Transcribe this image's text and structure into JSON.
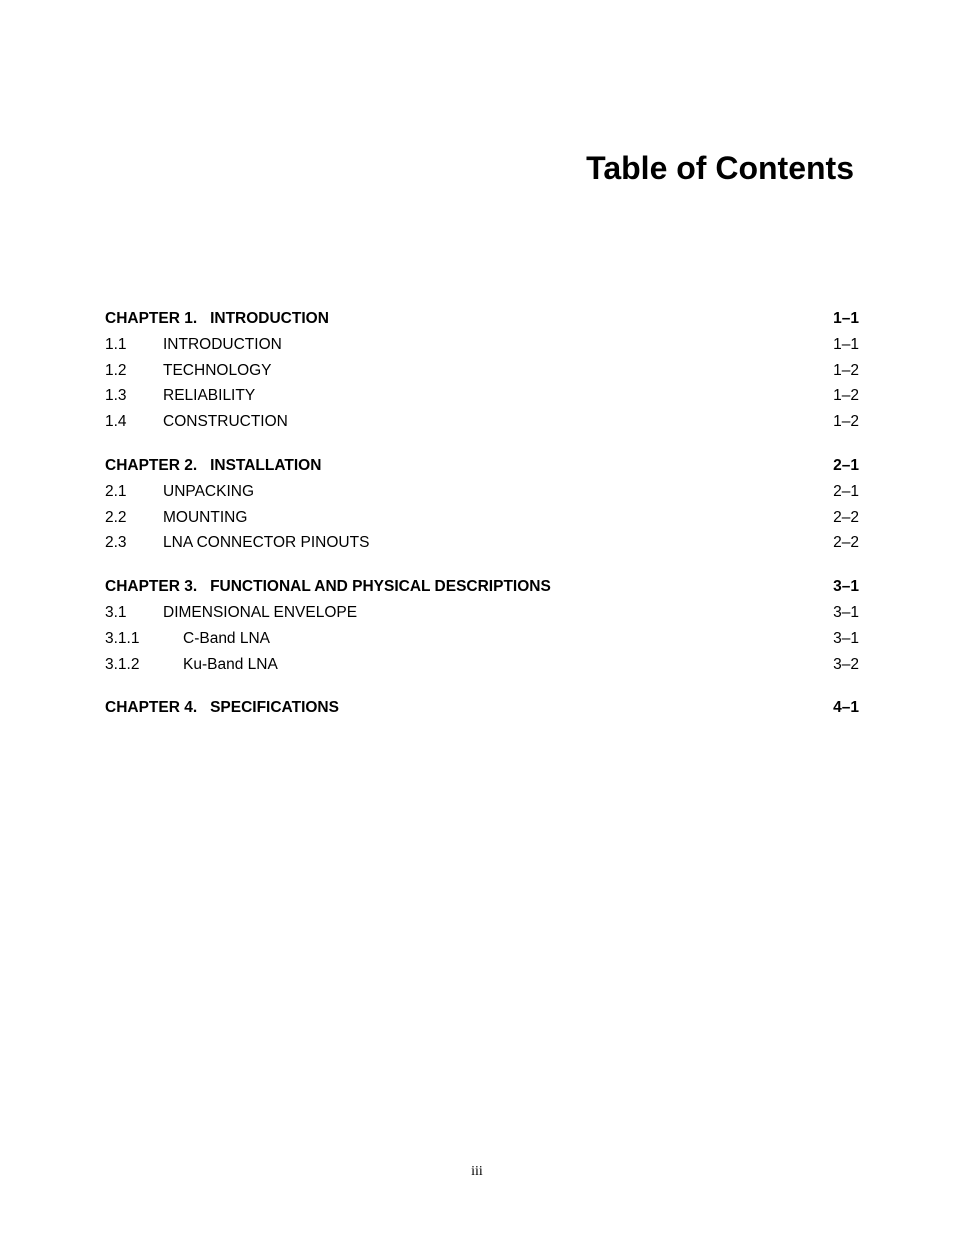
{
  "title": "Table of Contents",
  "page_number": "iii",
  "colors": {
    "background": "#ffffff",
    "text": "#000000"
  },
  "typography": {
    "title_fontsize": 32,
    "title_weight": "bold",
    "body_fontsize": 15.5,
    "footer_fontsize": 14
  },
  "entries": [
    {
      "number": "CHAPTER 1.",
      "text": "INTRODUCTION",
      "page": "1–1",
      "bold": true,
      "indent": 0
    },
    {
      "number": "1.1",
      "text": "INTRODUCTION",
      "page": "1–1",
      "bold": false,
      "indent": 1
    },
    {
      "number": "1.2",
      "text": "TECHNOLOGY",
      "page": "1–2",
      "bold": false,
      "indent": 1
    },
    {
      "number": "1.3",
      "text": "RELIABILITY",
      "page": "1–2",
      "bold": false,
      "indent": 1
    },
    {
      "number": "1.4",
      "text": "CONSTRUCTION",
      "page": "1–2",
      "bold": false,
      "indent": 1
    },
    {
      "gap": true
    },
    {
      "number": "CHAPTER 2.",
      "text": "INSTALLATION",
      "page": "2–1",
      "bold": true,
      "indent": 0
    },
    {
      "number": "2.1",
      "text": "UNPACKING",
      "page": "2–1",
      "bold": false,
      "indent": 2
    },
    {
      "number": "2.2",
      "text": "MOUNTING",
      "page": "2–2",
      "bold": false,
      "indent": 2
    },
    {
      "number": "2.3",
      "text": "LNA CONNECTOR PINOUTS",
      "page": "2–2",
      "bold": false,
      "indent": 2
    },
    {
      "gap": true
    },
    {
      "number": "CHAPTER 3.",
      "text": "FUNCTIONAL AND PHYSICAL DESCRIPTIONS",
      "page": "3–1",
      "bold": true,
      "indent": 0
    },
    {
      "number": "3.1",
      "text": "DIMENSIONAL ENVELOPE",
      "page": "3–1",
      "bold": false,
      "indent": 2
    },
    {
      "number": "3.1.1",
      "text": "C-Band LNA",
      "page": "3–1",
      "bold": false,
      "indent": 3
    },
    {
      "number": "3.1.2",
      "text": "Ku-Band LNA",
      "page": "3–2",
      "bold": false,
      "indent": 3
    },
    {
      "gap": true
    },
    {
      "number": "CHAPTER 4.",
      "text": "SPECIFICATIONS",
      "page": "4–1",
      "bold": true,
      "indent": 0
    }
  ]
}
